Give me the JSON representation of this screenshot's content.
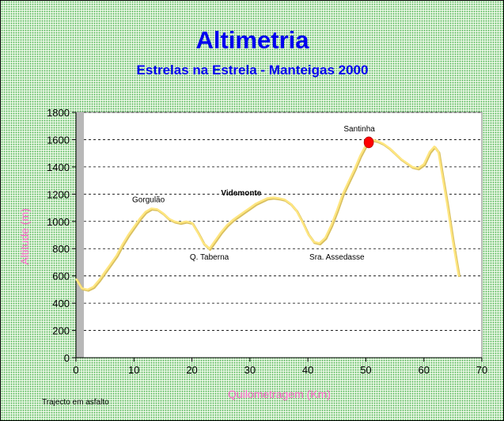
{
  "chart_data": {
    "type": "line",
    "title": "Altimetria",
    "subtitle": "Estrelas na Estrela - Manteigas 2000",
    "xlabel": "Quilometragem (Km)",
    "ylabel": "Altitude (m)",
    "xlim": [
      0,
      70
    ],
    "ylim": [
      0,
      1800
    ],
    "x_ticks": [
      "0",
      "10",
      "20",
      "30",
      "40",
      "50",
      "60",
      "70"
    ],
    "y_ticks": [
      "0",
      "200",
      "400",
      "600",
      "800",
      "1000",
      "1200",
      "1400",
      "1600",
      "1800"
    ],
    "grid": "horizontal-dashed",
    "line_color": "#ffe680",
    "marker_color": "#ff0000",
    "series": [
      {
        "values": [
          [
            0,
            580
          ],
          [
            1,
            510
          ],
          [
            2,
            500
          ],
          [
            3,
            520
          ],
          [
            4,
            570
          ],
          [
            5,
            630
          ],
          [
            6,
            690
          ],
          [
            7,
            750
          ],
          [
            8,
            830
          ],
          [
            9,
            900
          ],
          [
            10,
            960
          ],
          [
            11,
            1020
          ],
          [
            12,
            1070
          ],
          [
            13,
            1095
          ],
          [
            14,
            1090
          ],
          [
            15,
            1060
          ],
          [
            16,
            1020
          ],
          [
            17,
            1000
          ],
          [
            18,
            990
          ],
          [
            19,
            1000
          ],
          [
            20,
            990
          ],
          [
            21,
            920
          ],
          [
            22,
            840
          ],
          [
            23,
            800
          ],
          [
            24,
            860
          ],
          [
            25,
            920
          ],
          [
            26,
            970
          ],
          [
            27,
            1010
          ],
          [
            28,
            1040
          ],
          [
            29,
            1070
          ],
          [
            30,
            1100
          ],
          [
            31,
            1130
          ],
          [
            32,
            1150
          ],
          [
            33,
            1170
          ],
          [
            34,
            1175
          ],
          [
            35,
            1170
          ],
          [
            36,
            1160
          ],
          [
            37,
            1130
          ],
          [
            38,
            1080
          ],
          [
            39,
            1000
          ],
          [
            40,
            910
          ],
          [
            41,
            850
          ],
          [
            42,
            840
          ],
          [
            43,
            880
          ],
          [
            44,
            970
          ],
          [
            45,
            1080
          ],
          [
            46,
            1200
          ],
          [
            47,
            1290
          ],
          [
            48,
            1380
          ],
          [
            49,
            1480
          ],
          [
            50,
            1560
          ],
          [
            50.5,
            1580
          ],
          [
            51,
            1600
          ],
          [
            52,
            1590
          ],
          [
            53,
            1570
          ],
          [
            54,
            1540
          ],
          [
            55,
            1500
          ],
          [
            56,
            1460
          ],
          [
            57,
            1430
          ],
          [
            58,
            1400
          ],
          [
            59,
            1390
          ],
          [
            60,
            1420
          ],
          [
            61,
            1510
          ],
          [
            61.8,
            1550
          ],
          [
            62.5,
            1510
          ],
          [
            63,
            1380
          ],
          [
            64,
            1130
          ],
          [
            65,
            850
          ],
          [
            66,
            600
          ]
        ]
      }
    ],
    "marker": {
      "x": 50.5,
      "y": 1580,
      "label": "Santinha"
    },
    "annotations": [
      {
        "text": "Gorgulão",
        "x": 12.5,
        "y": 1140,
        "bold": false
      },
      {
        "text": "Videmonte",
        "x": 28.5,
        "y": 1190,
        "bold": true
      },
      {
        "text": "Q. Taberna",
        "x": 23,
        "y": 720,
        "bold": false
      },
      {
        "text": "Sra. Assedasse",
        "x": 45,
        "y": 720,
        "bold": false
      }
    ],
    "note": "Trajecto em asfalto"
  }
}
